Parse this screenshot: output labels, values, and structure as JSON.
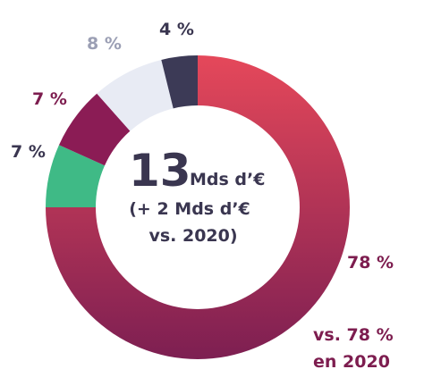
{
  "colors": {
    "main_top": "#e5485a",
    "main_bottom": "#7d1f52",
    "green": "#3fba86",
    "plum": "#8b1c55",
    "light": "#e8ebf4",
    "dark": "#3c3a56",
    "text_dark": "#3a3650",
    "text_plum": "#7d1d4f",
    "text_grey": "#9b9fb4"
  },
  "chart_data": {
    "type": "pie",
    "style": "donut",
    "categories": [
      "",
      "",
      "",
      "",
      ""
    ],
    "values": [
      78,
      7,
      7,
      8,
      4
    ],
    "labels": [
      "78 %",
      "7 %",
      "7 %",
      "8 %",
      "4 %"
    ],
    "center": {
      "value": "13",
      "unit": "Mds d’€",
      "line2": "(+ 2 Mds d’€",
      "line3": "vs. 2020)"
    },
    "comparison": {
      "line1": "vs. 78 %",
      "line2": "en 2020"
    }
  }
}
